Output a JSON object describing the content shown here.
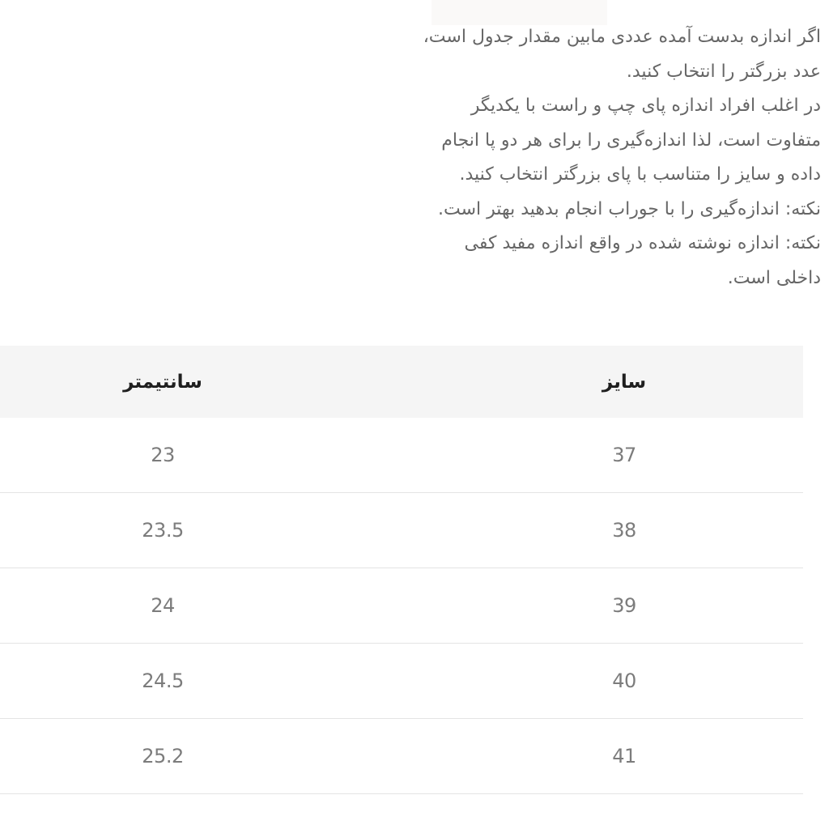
{
  "colors": {
    "page_background": "#ffffff",
    "header_row_background": "#f5f5f5",
    "row_divider": "#e4e4e4",
    "intro_text": "#666666",
    "header_text": "#1f1f1f",
    "value_text": "#7c7c7c",
    "top_cutoff_background": "#faf9f8"
  },
  "intro": {
    "lines": [
      "اگر اندازه بدست آمده عددی مابین مقدار جدول است،",
      "عدد بزرگتر را انتخاب کنید.",
      "در اغلب افراد اندازه پای چپ و راست با یکدیگر",
      "متفاوت است، لذا اندازه‌گیری را برای هر دو پا انجام",
      "داده و سایز را متناسب با پای بزرگتر انتخاب کنید.",
      "نکته: اندازه‌گیری را با جوراب انجام بدهید بهتر است.",
      "نکته: اندازه نوشته شده در واقع اندازه مفید کفی",
      "داخلی است."
    ]
  },
  "table": {
    "headers": {
      "size": "سایز",
      "cm": "سانتیمتر"
    },
    "rows": [
      {
        "size": "37",
        "cm": "23"
      },
      {
        "size": "38",
        "cm": "23.5"
      },
      {
        "size": "39",
        "cm": "24"
      },
      {
        "size": "40",
        "cm": "24.5"
      },
      {
        "size": "41",
        "cm": "25.2"
      }
    ]
  }
}
